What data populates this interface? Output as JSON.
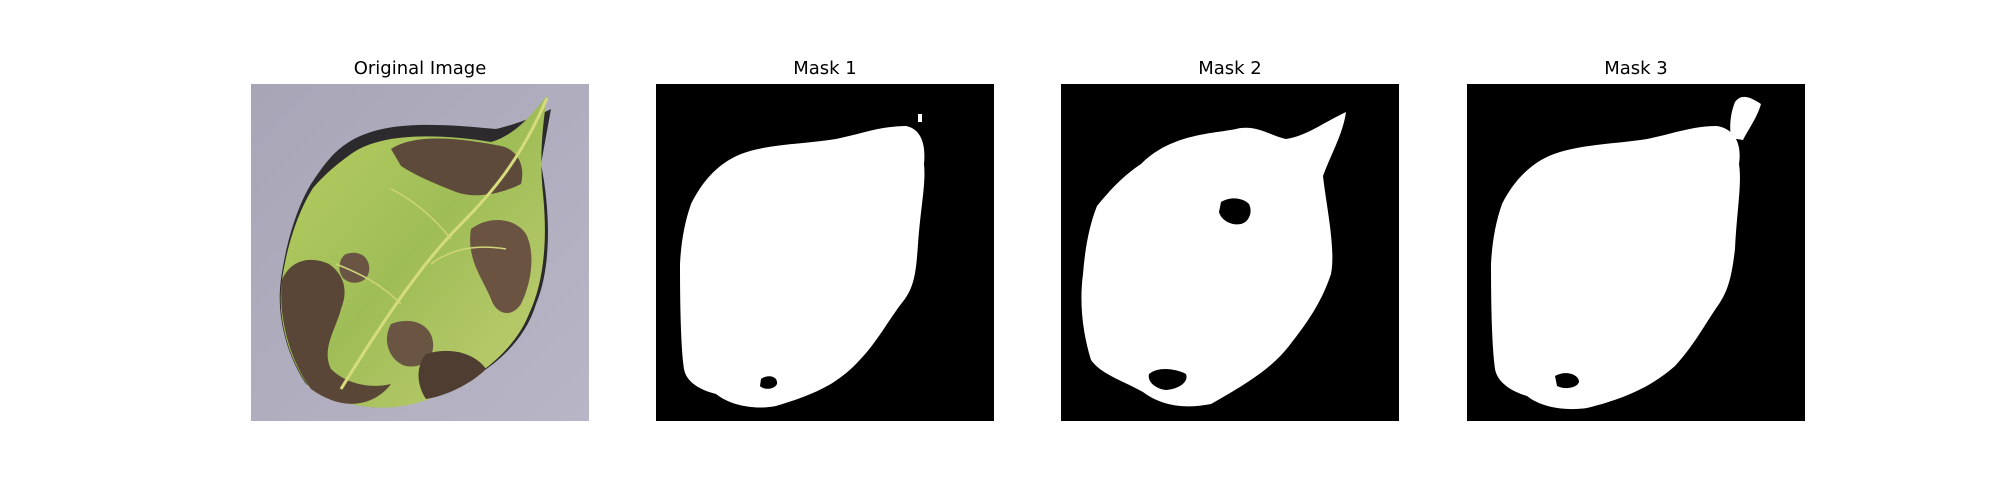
{
  "panels": [
    {
      "title": "Original Image"
    },
    {
      "title": "Mask 1"
    },
    {
      "title": "Mask 2"
    },
    {
      "title": "Mask 3"
    }
  ],
  "colors": {
    "background": "#ffffff",
    "mask_background": "#000000",
    "mask_foreground": "#ffffff",
    "photo_background": "#a9a7b6",
    "leaf_green": "#a9c55a",
    "leaf_brown": "#5a4838"
  },
  "icons": {
    "original": "leaf-photo",
    "mask1": "leaf-mask",
    "mask2": "leaf-mask",
    "mask3": "leaf-mask"
  }
}
